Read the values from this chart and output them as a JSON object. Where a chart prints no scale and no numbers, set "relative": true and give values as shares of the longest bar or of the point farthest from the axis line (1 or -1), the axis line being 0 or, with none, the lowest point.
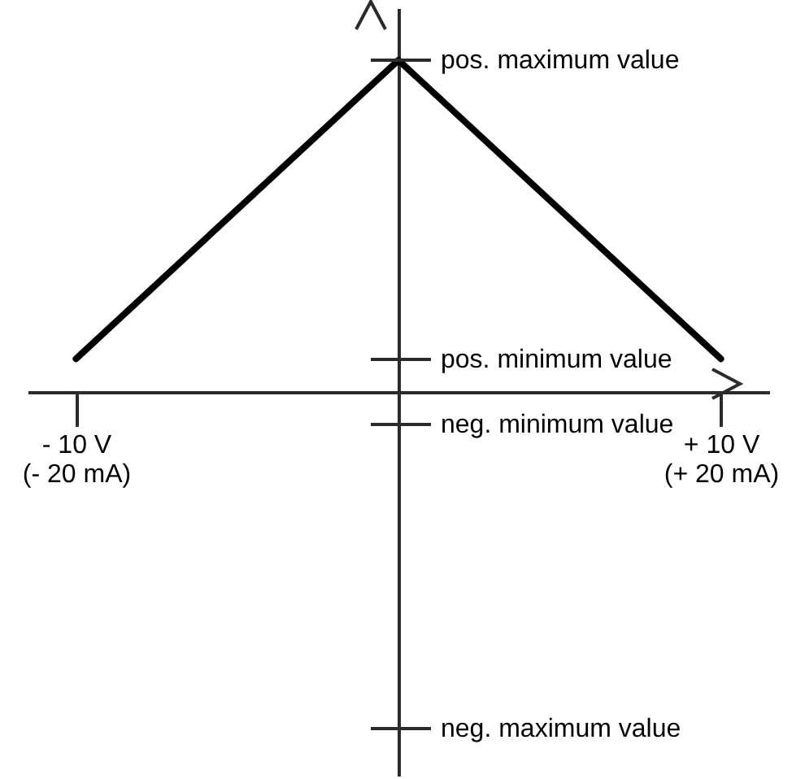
{
  "chart_data": {
    "type": "line",
    "categories": [
      "- 10 V\n(- 20 mA)",
      null,
      "+ 10 V\n(+ 20 mA)"
    ],
    "values": [
      0.1,
      1,
      0.1
    ],
    "color": "#000000",
    "relative": true,
    "annotations": [
      "pos. maximum value",
      "pos. minimum value",
      "neg. minimum value",
      "neg. maximum value"
    ]
  }
}
